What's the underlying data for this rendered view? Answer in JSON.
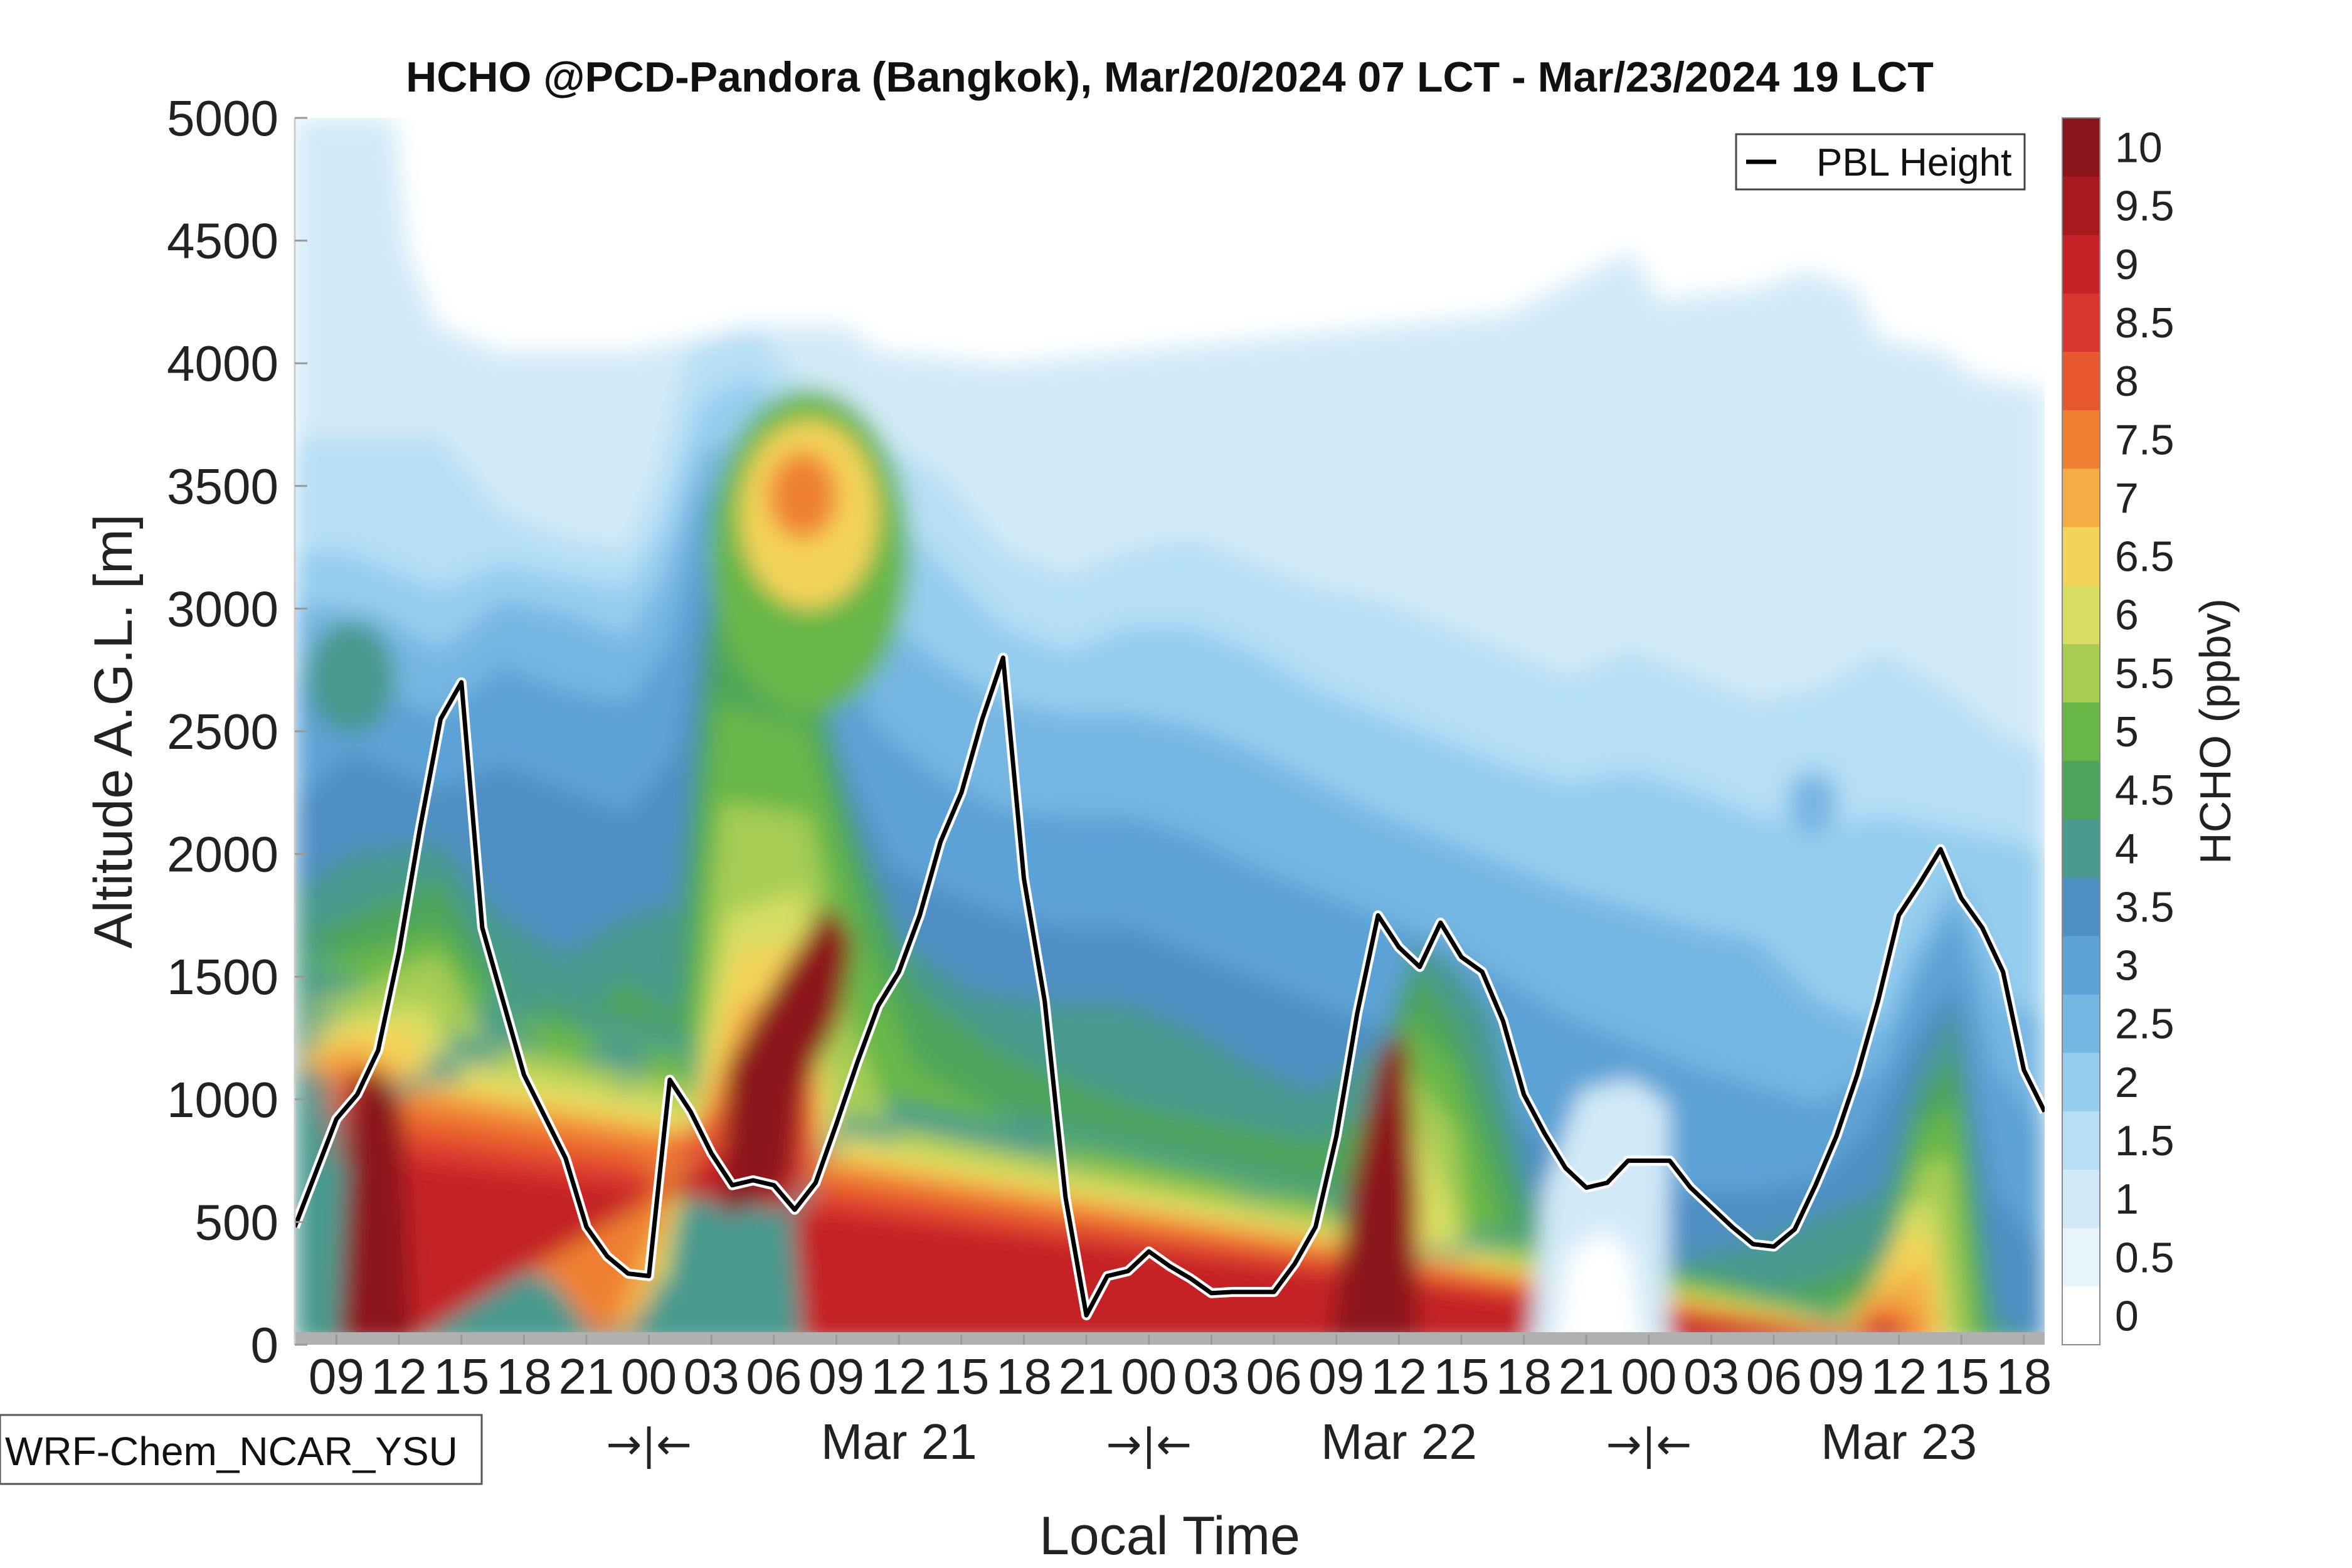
{
  "chart_data": {
    "type": "heatmap",
    "title": "HCHO @PCD-Pandora (Bangkok), Mar/20/2024 07 LCT - Mar/23/2024 19 LCT",
    "xlabel": "Local Time",
    "ylabel": "Altitude A.G.L. [m]",
    "colorbar_label": "HCHO (ppbv)",
    "model_label": "WRF-Chem_NCAR_YSU",
    "legend": {
      "entry": "PBL Height",
      "placement": "top-right"
    },
    "ylim": [
      0,
      5000
    ],
    "yticks": [
      0,
      500,
      1000,
      1500,
      2000,
      2500,
      3000,
      3500,
      4000,
      4500,
      5000
    ],
    "xlim_hours": [
      7,
      91
    ],
    "xtick_hours": [
      9,
      12,
      15,
      18,
      21,
      24,
      27,
      30,
      33,
      36,
      39,
      42,
      45,
      48,
      51,
      54,
      57,
      60,
      63,
      66,
      69,
      72,
      75,
      78,
      81,
      84,
      87,
      90
    ],
    "xtick_labels": [
      "09",
      "12",
      "15",
      "18",
      "21",
      "00",
      "03",
      "06",
      "09",
      "12",
      "15",
      "18",
      "21",
      "00",
      "03",
      "06",
      "09",
      "12",
      "15",
      "18",
      "21",
      "00",
      "03",
      "06",
      "09",
      "12",
      "15",
      "18"
    ],
    "day_labels": [
      {
        "text": "→|←",
        "hour": 24
      },
      {
        "text": "Mar 21",
        "hour": 36
      },
      {
        "text": "→|←",
        "hour": 48
      },
      {
        "text": "Mar 22",
        "hour": 60
      },
      {
        "text": "→|←",
        "hour": 72
      },
      {
        "text": "Mar 23",
        "hour": 84
      }
    ],
    "colorbar": {
      "ticks": [
        "0",
        "0.5",
        "1",
        "1.5",
        "2",
        "2.5",
        "3",
        "3.5",
        "4",
        "4.5",
        "5",
        "5.5",
        "6",
        "6.5",
        "7",
        "7.5",
        "8",
        "8.5",
        "9",
        "9.5",
        "10"
      ],
      "colors": [
        "#ffffff",
        "#e8f4fb",
        "#d2eaf8",
        "#b6def5",
        "#94cdee",
        "#76b6e2",
        "#5da2d6",
        "#4f8fc4",
        "#4a9a8f",
        "#4da55b",
        "#67b748",
        "#a7cd55",
        "#d8de63",
        "#f4d35a",
        "#f3ad44",
        "#ef8033",
        "#e8582e",
        "#d8352d",
        "#c52227",
        "#a8181f",
        "#8c141b"
      ]
    },
    "pbl_height": {
      "hours": [
        7,
        8,
        9,
        10,
        11,
        12,
        13,
        14,
        15,
        16,
        18,
        20,
        21,
        22,
        23,
        24,
        25,
        26,
        27,
        28,
        29,
        30,
        31,
        32,
        33,
        34,
        35,
        36,
        37,
        38,
        39,
        40,
        41,
        42,
        43,
        44,
        45,
        46,
        47,
        48,
        49,
        50,
        51,
        52,
        53,
        54,
        55,
        56,
        57,
        58,
        59,
        60,
        61,
        62,
        63,
        64,
        65,
        66,
        67,
        68,
        69,
        70,
        71,
        72,
        73,
        74,
        75,
        76,
        77,
        78,
        79,
        80,
        81,
        82,
        83,
        84,
        85,
        86,
        87,
        88,
        89,
        90,
        91
      ],
      "values": [
        480,
        700,
        920,
        1020,
        1200,
        1600,
        2100,
        2550,
        2700,
        1700,
        1100,
        760,
        480,
        360,
        290,
        280,
        1080,
        950,
        780,
        650,
        670,
        650,
        550,
        660,
        900,
        1150,
        1380,
        1520,
        1750,
        2050,
        2250,
        2550,
        2800,
        1900,
        1400,
        600,
        120,
        280,
        300,
        380,
        320,
        270,
        210,
        215,
        215,
        215,
        330,
        480,
        850,
        1350,
        1750,
        1620,
        1540,
        1720,
        1580,
        1520,
        1320,
        1020,
        860,
        720,
        640,
        660,
        750,
        750,
        750,
        640,
        560,
        480,
        410,
        400,
        470,
        650,
        850,
        1100,
        1400,
        1750,
        1880,
        2020,
        1820,
        1700,
        1520,
        1120,
        950
      ]
    },
    "contour_levels_description": "filled contours of HCHO mixing ratio (ppbv) vs local time and altitude"
  }
}
